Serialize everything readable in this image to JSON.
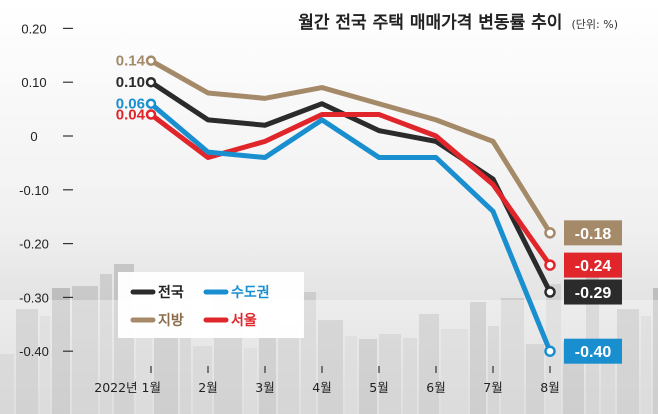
{
  "chart_data": {
    "type": "line",
    "title": "월간 전국 주택 매매가격 변동률 추이",
    "unit": "(단위: %)",
    "categories": [
      "2022년 1월",
      "2월",
      "3월",
      "4월",
      "5월",
      "6월",
      "7월",
      "8월"
    ],
    "ylim": [
      -0.42,
      0.22
    ],
    "yticks": [
      0.2,
      0.1,
      0,
      -0.1,
      -0.2,
      -0.3,
      -0.4
    ],
    "ytick_labels": [
      "0.20",
      "0.10",
      "0",
      "-0.10",
      "-0.20",
      "-0.30",
      "-0.40"
    ],
    "series": [
      {
        "name": "지방",
        "color": "#a58a6a",
        "values": [
          0.14,
          0.08,
          0.07,
          0.09,
          0.06,
          0.03,
          -0.01,
          -0.18
        ],
        "start_label": "0.14",
        "end_label": "-0.18"
      },
      {
        "name": "전국",
        "color": "#2b2b2b",
        "values": [
          0.1,
          0.03,
          0.02,
          0.06,
          0.01,
          -0.01,
          -0.08,
          -0.29
        ],
        "start_label": "0.10",
        "end_label": "-0.29"
      },
      {
        "name": "서울",
        "color": "#e0262b",
        "values": [
          0.04,
          -0.04,
          -0.01,
          0.04,
          0.04,
          0.0,
          -0.09,
          -0.24
        ],
        "start_label": "0.04",
        "end_label": "-0.24"
      },
      {
        "name": "수도권",
        "color": "#1a8fd0",
        "values": [
          0.06,
          -0.03,
          -0.04,
          0.03,
          -0.04,
          -0.04,
          -0.14,
          -0.4
        ],
        "start_label": "0.06",
        "end_label": "-0.40"
      }
    ],
    "legend": [
      {
        "name": "전국",
        "color": "#2b2b2b",
        "text_color": "#222222"
      },
      {
        "name": "수도권",
        "color": "#1a8fd0",
        "text_color": "#1a8fd0"
      },
      {
        "name": "지방",
        "color": "#a58a6a",
        "text_color": "#8a6d4c"
      },
      {
        "name": "서울",
        "color": "#e0262b",
        "text_color": "#e0262b"
      }
    ]
  }
}
